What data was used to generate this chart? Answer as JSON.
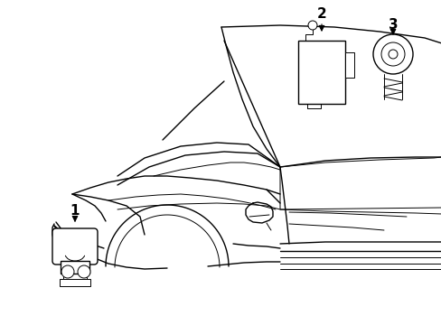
{
  "background_color": "#ffffff",
  "line_color": "#000000",
  "lw": 1.0,
  "tlw": 0.7,
  "fig_width": 4.89,
  "fig_height": 3.6,
  "dpi": 100,
  "label_fontsize": 11,
  "label_fontweight": "bold"
}
